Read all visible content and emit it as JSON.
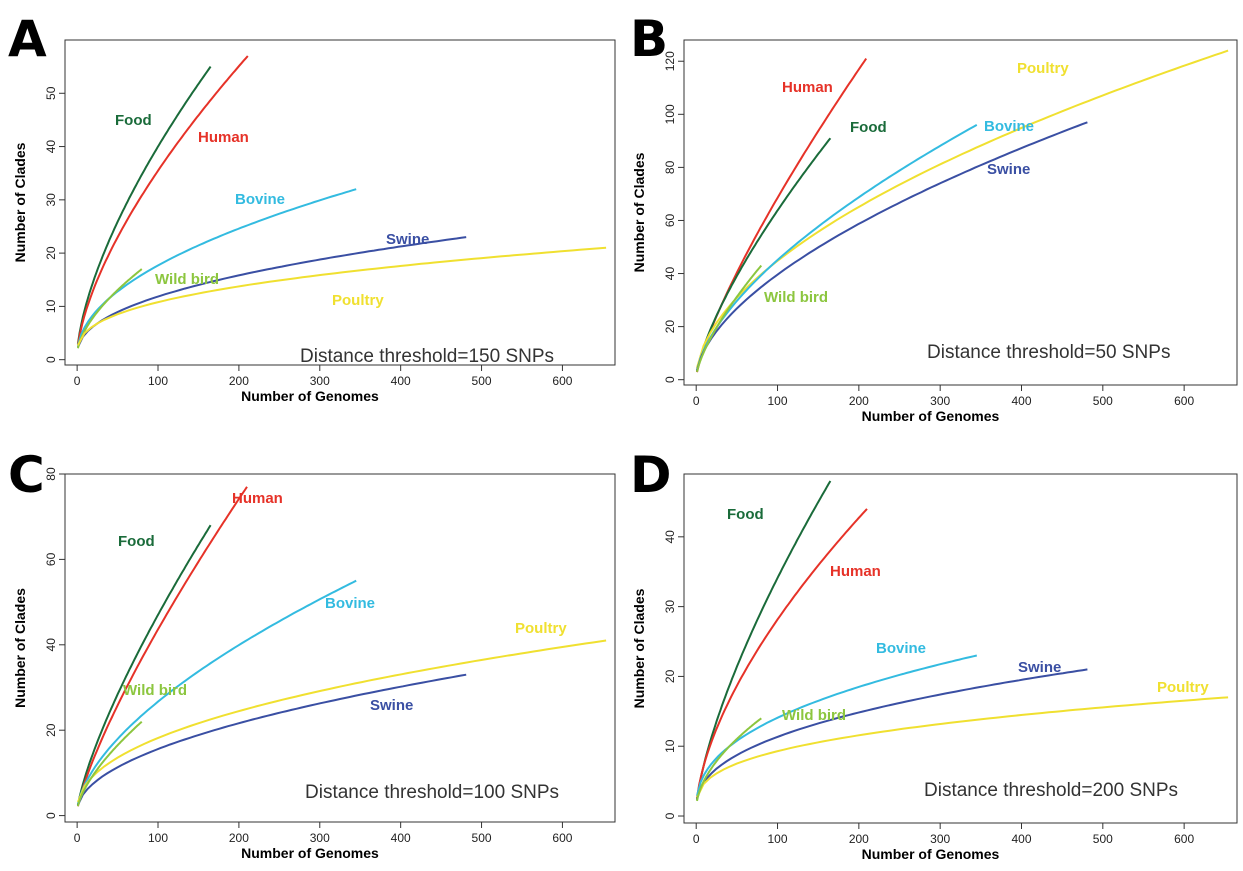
{
  "chart_data": [
    {
      "panel": "A",
      "type": "line",
      "xlabel": "Number of Genomes",
      "ylabel": "Number of Clades",
      "xlim": [
        -15,
        665
      ],
      "ylim": [
        -1,
        60
      ],
      "xticks": [
        0,
        100,
        200,
        300,
        400,
        500,
        600
      ],
      "yticks": [
        0,
        10,
        20,
        30,
        40,
        50
      ],
      "annotation": "Distance threshold=150 SNPs",
      "series": [
        {
          "name": "Food",
          "color": "#1a6b3a",
          "x_max": 165,
          "y_max": 55,
          "k": 0.65
        },
        {
          "name": "Human",
          "color": "#e63228",
          "x_max": 211,
          "y_max": 57,
          "k": 0.65
        },
        {
          "name": "Bovine",
          "color": "#33bbe0",
          "x_max": 345,
          "y_max": 32,
          "k": 0.5
        },
        {
          "name": "Swine",
          "color": "#3a4fa3",
          "x_max": 481,
          "y_max": 23,
          "k": 0.45
        },
        {
          "name": "Wild bird",
          "color": "#8cc63f",
          "x_max": 80,
          "y_max": 17,
          "k": 0.6
        },
        {
          "name": "Poultry",
          "color": "#f0e030",
          "x_max": 654,
          "y_max": 21,
          "k": 0.38
        }
      ]
    },
    {
      "panel": "B",
      "type": "line",
      "xlabel": "Number of Genomes",
      "ylabel": "Number of Clades",
      "xlim": [
        -15,
        665
      ],
      "ylim": [
        -2,
        128
      ],
      "xticks": [
        0,
        100,
        200,
        300,
        400,
        500,
        600
      ],
      "yticks": [
        0,
        20,
        40,
        60,
        80,
        100,
        120
      ],
      "annotation": "Distance threshold=50 SNPs",
      "series": [
        {
          "name": "Human",
          "color": "#e63228",
          "x_max": 209,
          "y_max": 121,
          "k": 0.78
        },
        {
          "name": "Food",
          "color": "#1a6b3a",
          "x_max": 165,
          "y_max": 91,
          "k": 0.72
        },
        {
          "name": "Poultry",
          "color": "#f0e030",
          "x_max": 654,
          "y_max": 124,
          "k": 0.55
        },
        {
          "name": "Bovine",
          "color": "#33bbe0",
          "x_max": 345,
          "y_max": 96,
          "k": 0.62
        },
        {
          "name": "Swine",
          "color": "#3a4fa3",
          "x_max": 481,
          "y_max": 97,
          "k": 0.58
        },
        {
          "name": "Wild bird",
          "color": "#8cc63f",
          "x_max": 80,
          "y_max": 43,
          "k": 0.7
        }
      ]
    },
    {
      "panel": "C",
      "type": "line",
      "xlabel": "Number of Genomes",
      "ylabel": "Number of Clades",
      "xlim": [
        -15,
        665
      ],
      "ylim": [
        -1.5,
        80
      ],
      "xticks": [
        0,
        100,
        200,
        300,
        400,
        500,
        600
      ],
      "yticks": [
        0,
        20,
        40,
        60,
        80
      ],
      "annotation": "Distance threshold=100 SNPs",
      "series": [
        {
          "name": "Food",
          "color": "#1a6b3a",
          "x_max": 165,
          "y_max": 68,
          "k": 0.75
        },
        {
          "name": "Human",
          "color": "#e63228",
          "x_max": 210,
          "y_max": 77,
          "k": 0.78
        },
        {
          "name": "Bovine",
          "color": "#33bbe0",
          "x_max": 345,
          "y_max": 55,
          "k": 0.6
        },
        {
          "name": "Poultry",
          "color": "#f0e030",
          "x_max": 654,
          "y_max": 41,
          "k": 0.45
        },
        {
          "name": "Swine",
          "color": "#3a4fa3",
          "x_max": 481,
          "y_max": 33,
          "k": 0.5
        },
        {
          "name": "Wild bird",
          "color": "#8cc63f",
          "x_max": 80,
          "y_max": 22,
          "k": 0.65
        }
      ]
    },
    {
      "panel": "D",
      "type": "line",
      "xlabel": "Number of Genomes",
      "ylabel": "Number of Clades",
      "xlim": [
        -15,
        665
      ],
      "ylim": [
        -1,
        49
      ],
      "xticks": [
        0,
        100,
        200,
        300,
        400,
        500,
        600
      ],
      "yticks": [
        0,
        10,
        20,
        30,
        40
      ],
      "annotation": "Distance threshold=200 SNPs",
      "series": [
        {
          "name": "Food",
          "color": "#1a6b3a",
          "x_max": 165,
          "y_max": 48,
          "k": 0.7
        },
        {
          "name": "Human",
          "color": "#e63228",
          "x_max": 210,
          "y_max": 44,
          "k": 0.62
        },
        {
          "name": "Bovine",
          "color": "#33bbe0",
          "x_max": 345,
          "y_max": 23,
          "k": 0.42
        },
        {
          "name": "Swine",
          "color": "#3a4fa3",
          "x_max": 481,
          "y_max": 21,
          "k": 0.42
        },
        {
          "name": "Poultry",
          "color": "#f0e030",
          "x_max": 654,
          "y_max": 17,
          "k": 0.35
        },
        {
          "name": "Wild bird",
          "color": "#8cc63f",
          "x_max": 80,
          "y_max": 14,
          "k": 0.55
        }
      ]
    }
  ]
}
